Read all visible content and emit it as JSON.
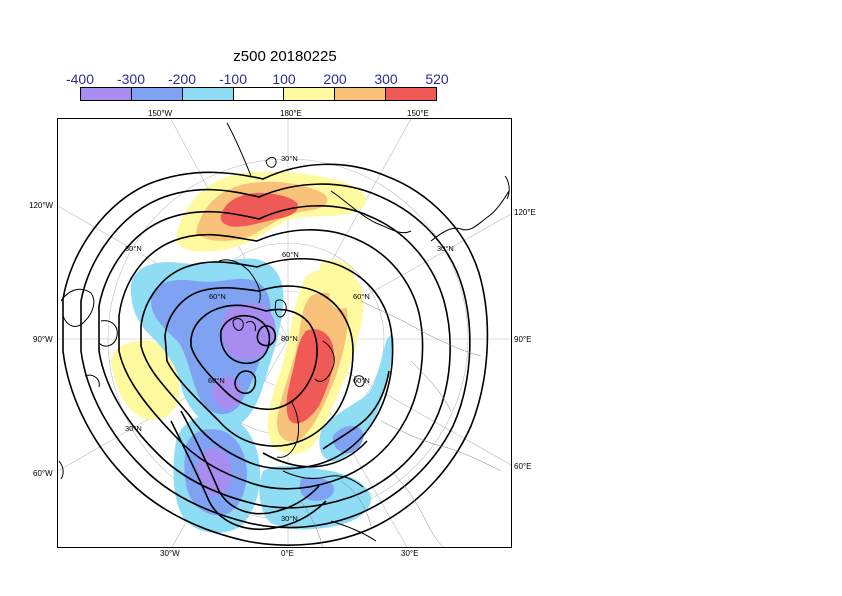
{
  "title": "z500 20180225",
  "colorbar": {
    "labels": [
      "-400",
      "-300",
      "-200",
      "-100",
      "100",
      "200",
      "300",
      "520"
    ],
    "colors": [
      "#a98cef",
      "#7fa3f2",
      "#8fdcf5",
      "#ffffff",
      "#fffaa0",
      "#f8c27a",
      "#ef5a56"
    ]
  },
  "map": {
    "projection": "polar stereographic, North Pole",
    "top_lon_labels": [
      "150°W",
      "180°E"
    ],
    "top_right_lon_label": "150°E",
    "left_lon_labels": [
      "120°W",
      "90°W",
      "60°W"
    ],
    "right_lon_labels": [
      "120°E",
      "90°E",
      "60°E"
    ],
    "bottom_lon_labels": [
      "30°W",
      "0°E",
      "30°E"
    ],
    "lat_labels": [
      "30°N",
      "30°N",
      "60°N",
      "60°N",
      "80°N",
      "60°N",
      "30°N",
      "60°N",
      "30°N",
      "60°N",
      "30°N"
    ]
  }
}
